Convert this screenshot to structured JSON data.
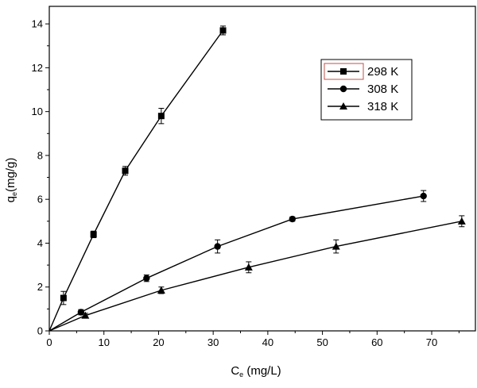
{
  "chart_data": {
    "type": "line",
    "xlabel": {
      "main": "C",
      "sub": "e",
      "rest": " (mg/L)"
    },
    "ylabel": {
      "main": "q",
      "sub": "e",
      "rest": "(mg/g)"
    },
    "xlim": [
      0,
      78
    ],
    "ylim": [
      0,
      14.8
    ],
    "x_ticks": [
      0,
      10,
      20,
      30,
      40,
      50,
      60,
      70
    ],
    "y_ticks": [
      0,
      2,
      4,
      6,
      8,
      10,
      12,
      14
    ],
    "grid": false,
    "legend_position": "top-right",
    "series": [
      {
        "name": "298 K",
        "marker": "square",
        "x": [
          0,
          2.6,
          8.1,
          13.9,
          20.5,
          31.8
        ],
        "y": [
          0,
          1.5,
          4.4,
          7.3,
          9.8,
          13.7
        ],
        "err": [
          0,
          0.3,
          0.15,
          0.2,
          0.35,
          0.2
        ]
      },
      {
        "name": "308 K",
        "marker": "circle",
        "x": [
          0,
          5.8,
          17.8,
          30.8,
          44.5,
          68.5
        ],
        "y": [
          0,
          0.85,
          2.4,
          3.85,
          5.1,
          6.15
        ],
        "err": [
          0,
          0.12,
          0.15,
          0.3,
          0.1,
          0.25
        ]
      },
      {
        "name": "318 K",
        "marker": "triangle",
        "x": [
          0,
          6.6,
          20.5,
          36.5,
          52.5,
          75.5
        ],
        "y": [
          0,
          0.7,
          1.85,
          2.9,
          3.85,
          5.0
        ],
        "err": [
          0,
          0.1,
          0.15,
          0.25,
          0.3,
          0.25
        ]
      }
    ],
    "colors": {
      "line": "#000000",
      "legend_highlight": "#c0504d"
    }
  }
}
